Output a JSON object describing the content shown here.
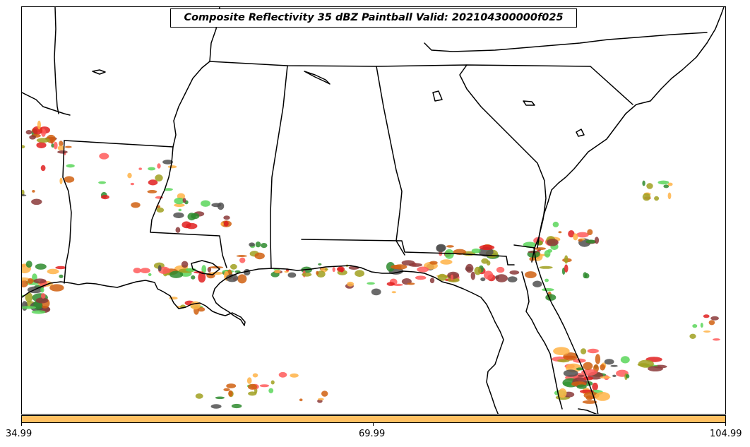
{
  "title": "Composite Reflectivity 35 dBZ Paintball Valid: 202104300000f025",
  "colorbar": {
    "color": "#ffc062",
    "ticks": [
      "34.99",
      "69.99",
      "104.99"
    ]
  },
  "member_colors": [
    "#ff5a5a",
    "#ffb347",
    "#5ad65a",
    "#8b3a3a",
    "#e02020",
    "#2e8b2e",
    "#a0a020",
    "#505050",
    "#d06010"
  ]
}
